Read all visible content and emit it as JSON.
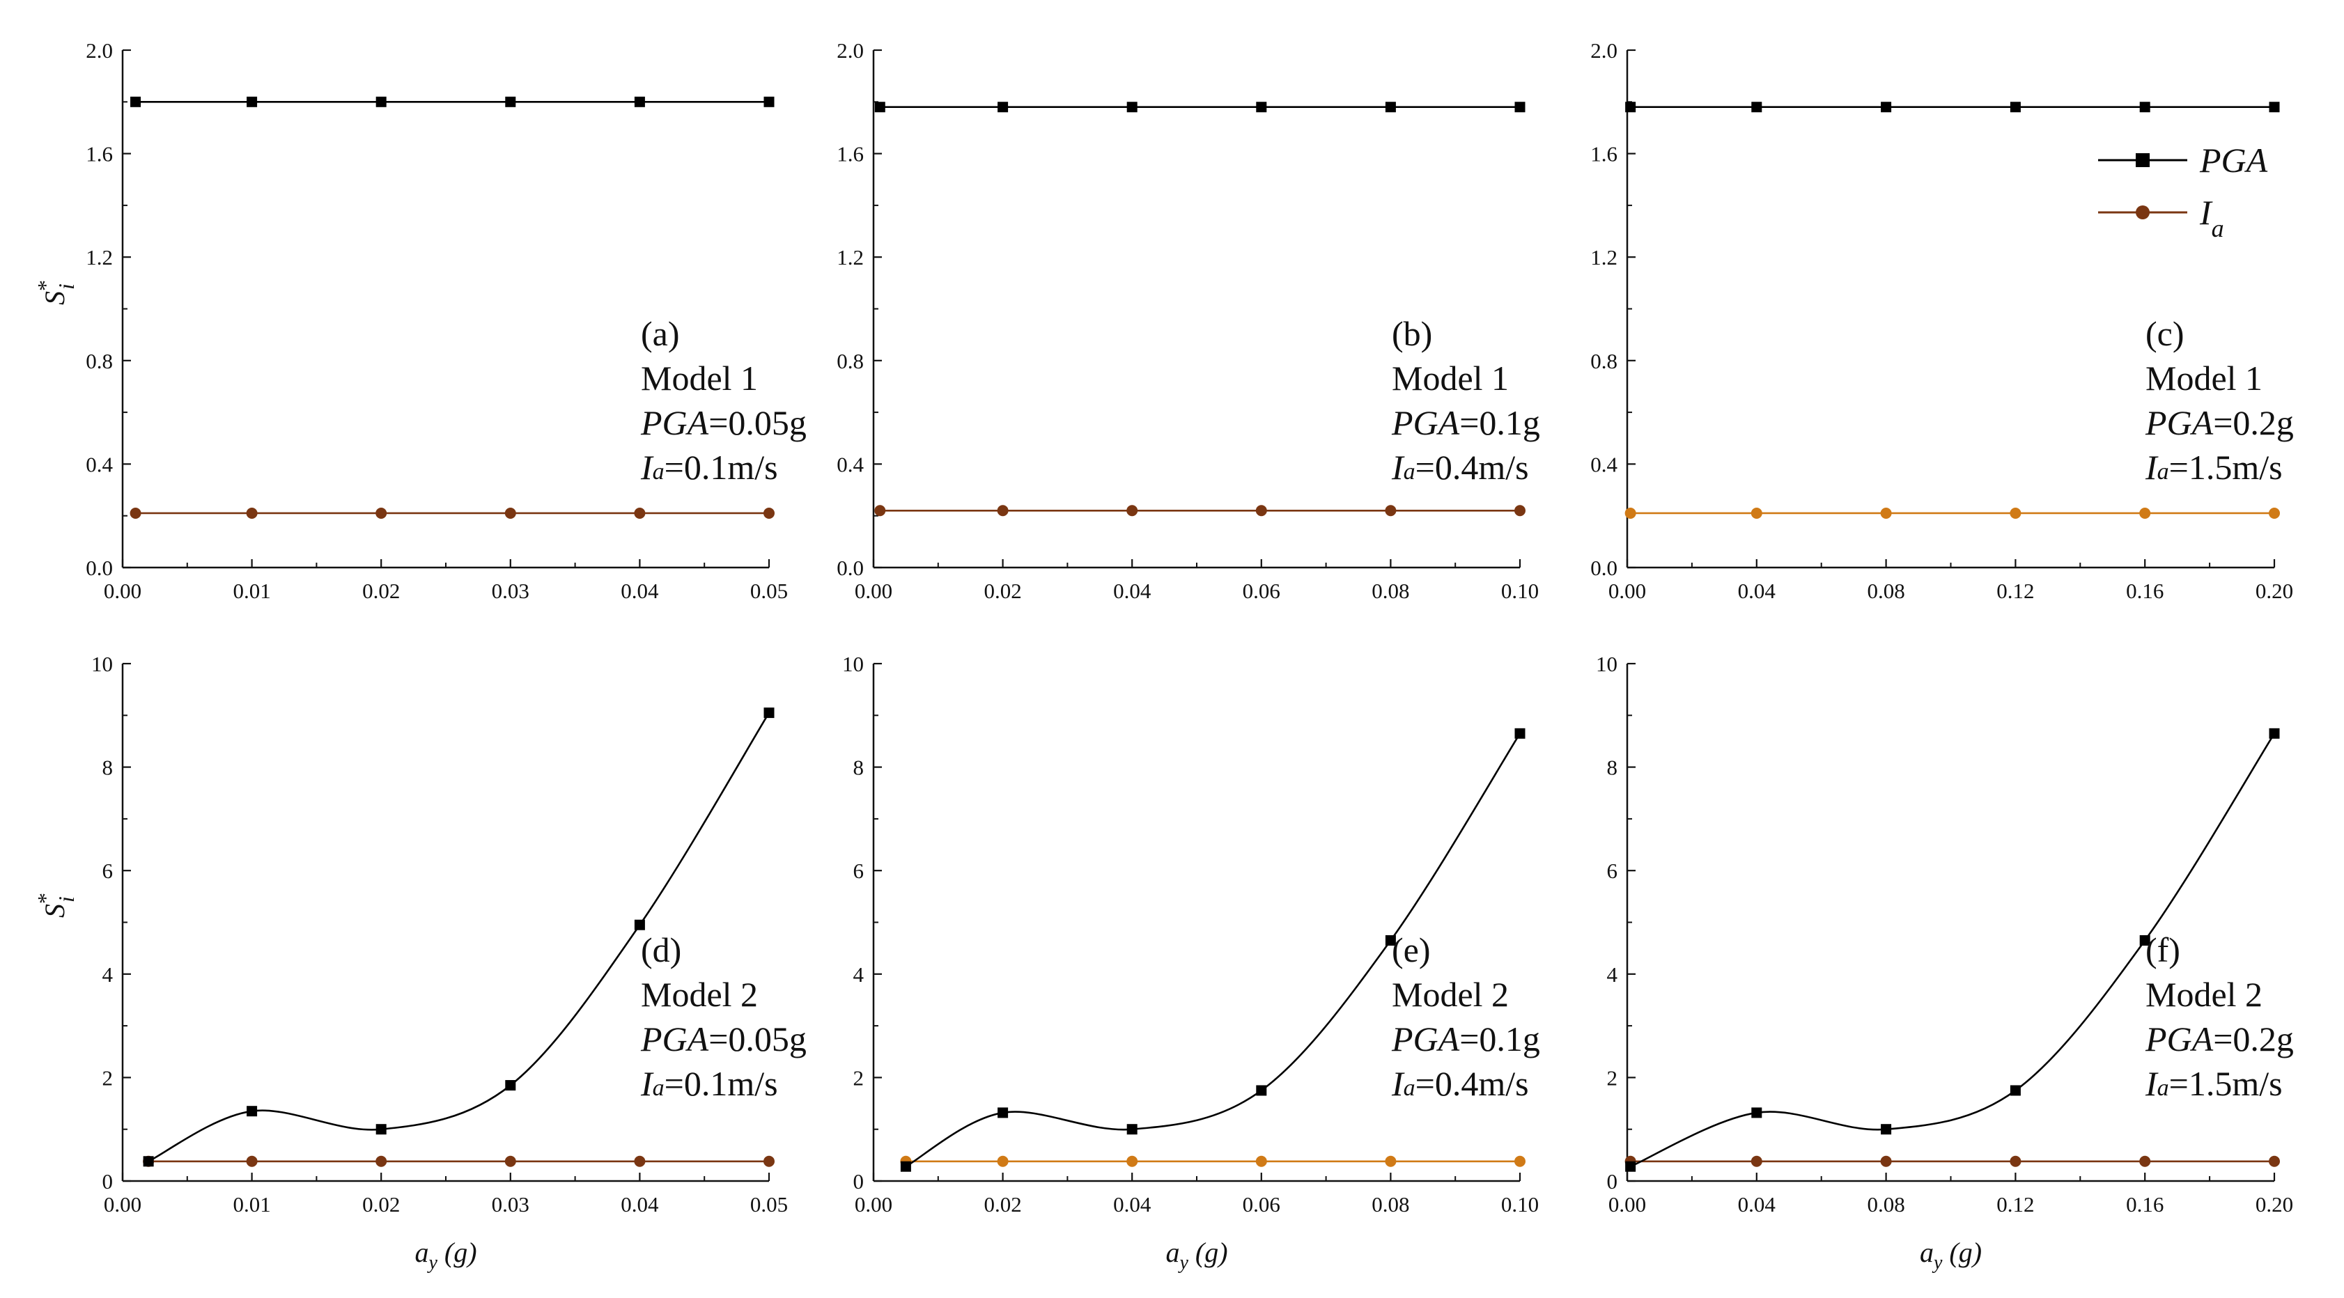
{
  "colors": {
    "pga": "#000000",
    "ia_dark": "#7a3612",
    "ia_orange": "#d07a16",
    "axis": "#111111"
  },
  "legend": {
    "placement": "top-right of panel (c)",
    "items": [
      {
        "label": "PGA",
        "marker": "square",
        "color": "#000000"
      },
      {
        "main": "I",
        "sub": "a",
        "marker": "circle",
        "color": "#7a3612"
      }
    ]
  },
  "ylabel": {
    "main": "S",
    "sup": "*",
    "sub": "i"
  },
  "xlabel": {
    "main": "a",
    "sub": "y",
    "unit": " (g)"
  },
  "chart_data": [
    {
      "type": "line",
      "panel": "a",
      "x": [
        0.001,
        0.01,
        0.02,
        0.03,
        0.04,
        0.05
      ],
      "xlim": [
        0,
        0.05
      ],
      "xticks": [
        0,
        0.01,
        0.02,
        0.03,
        0.04,
        0.05
      ],
      "xdec": 2,
      "ylim": [
        0,
        2.0
      ],
      "yticks": [
        0,
        0.4,
        0.8,
        1.2,
        1.6,
        2.0
      ],
      "ydec": 1,
      "series": [
        {
          "name": "PGA",
          "values": [
            1.8,
            1.8,
            1.8,
            1.8,
            1.8,
            1.8
          ]
        },
        {
          "name": "Ia",
          "values": [
            0.21,
            0.21,
            0.21,
            0.21,
            0.21,
            0.21
          ]
        }
      ],
      "ia_color": "#7a3612",
      "annotation": {
        "tag": "(a)",
        "model": "Model 1",
        "pga_label": "PGA",
        "pga_value": "=0.05g",
        "ia_label": "I",
        "ia_sub": "a",
        "ia_value": "=0.1m/s"
      }
    },
    {
      "type": "line",
      "panel": "b",
      "x": [
        0.001,
        0.02,
        0.04,
        0.06,
        0.08,
        0.1
      ],
      "xlim": [
        0,
        0.1
      ],
      "xticks": [
        0,
        0.02,
        0.04,
        0.06,
        0.08,
        0.1
      ],
      "xdec": 2,
      "ylim": [
        0,
        2.0
      ],
      "yticks": [
        0,
        0.4,
        0.8,
        1.2,
        1.6,
        2.0
      ],
      "ydec": 1,
      "series": [
        {
          "name": "PGA",
          "values": [
            1.78,
            1.78,
            1.78,
            1.78,
            1.78,
            1.78
          ]
        },
        {
          "name": "Ia",
          "values": [
            0.22,
            0.22,
            0.22,
            0.22,
            0.22,
            0.22
          ]
        }
      ],
      "ia_color": "#7a3612",
      "annotation": {
        "tag": "(b)",
        "model": "Model 1",
        "pga_label": "PGA",
        "pga_value": "=0.1g",
        "ia_label": "I",
        "ia_sub": "a",
        "ia_value": "=0.4m/s"
      }
    },
    {
      "type": "line",
      "panel": "c",
      "x": [
        0.001,
        0.04,
        0.08,
        0.12,
        0.16,
        0.2
      ],
      "xlim": [
        0,
        0.2
      ],
      "xticks": [
        0,
        0.04,
        0.08,
        0.12,
        0.16,
        0.2
      ],
      "xdec": 2,
      "ylim": [
        0,
        2.0
      ],
      "yticks": [
        0,
        0.4,
        0.8,
        1.2,
        1.6,
        2.0
      ],
      "ydec": 1,
      "series": [
        {
          "name": "PGA",
          "values": [
            1.78,
            1.78,
            1.78,
            1.78,
            1.78,
            1.78
          ]
        },
        {
          "name": "Ia",
          "values": [
            0.21,
            0.21,
            0.21,
            0.21,
            0.21,
            0.21
          ]
        }
      ],
      "ia_color": "#d07a16",
      "annotation": {
        "tag": "(c)",
        "model": "Model 1",
        "pga_label": "PGA",
        "pga_value": "=0.2g",
        "ia_label": "I",
        "ia_sub": "a",
        "ia_value": "=1.5m/s"
      }
    },
    {
      "type": "line",
      "panel": "d",
      "x": [
        0.002,
        0.01,
        0.02,
        0.03,
        0.04,
        0.05
      ],
      "xlim": [
        0,
        0.05
      ],
      "xticks": [
        0,
        0.01,
        0.02,
        0.03,
        0.04,
        0.05
      ],
      "xdec": 2,
      "ylim": [
        0,
        10
      ],
      "yticks": [
        0,
        2,
        4,
        6,
        8,
        10
      ],
      "ydec": 0,
      "series": [
        {
          "name": "PGA",
          "values": [
            0.38,
            1.35,
            1.0,
            1.85,
            4.95,
            9.05
          ]
        },
        {
          "name": "Ia",
          "values": [
            0.38,
            0.38,
            0.38,
            0.38,
            0.38,
            0.38
          ]
        }
      ],
      "ia_color": "#7a3612",
      "annotation": {
        "tag": "(d)",
        "model": "Model 2",
        "pga_label": "PGA",
        "pga_value": "=0.05g",
        "ia_label": "I",
        "ia_sub": "a",
        "ia_value": "=0.1m/s"
      }
    },
    {
      "type": "line",
      "panel": "e",
      "x": [
        0.005,
        0.02,
        0.04,
        0.06,
        0.08,
        0.1
      ],
      "xlim": [
        0,
        0.1
      ],
      "xticks": [
        0,
        0.02,
        0.04,
        0.06,
        0.08,
        0.1
      ],
      "xdec": 2,
      "ylim": [
        0,
        10
      ],
      "yticks": [
        0,
        2,
        4,
        6,
        8,
        10
      ],
      "ydec": 0,
      "series": [
        {
          "name": "PGA",
          "values": [
            0.28,
            1.32,
            1.0,
            1.75,
            4.65,
            8.65
          ]
        },
        {
          "name": "Ia",
          "values": [
            0.38,
            0.38,
            0.38,
            0.38,
            0.38,
            0.38
          ]
        }
      ],
      "ia_color": "#d07a16",
      "annotation": {
        "tag": "(e)",
        "model": "Model 2",
        "pga_label": "PGA",
        "pga_value": "=0.1g",
        "ia_label": "I",
        "ia_sub": "a",
        "ia_value": "=0.4m/s"
      }
    },
    {
      "type": "line",
      "panel": "f",
      "x": [
        0.001,
        0.04,
        0.08,
        0.12,
        0.16,
        0.2
      ],
      "xlim": [
        0,
        0.2
      ],
      "xticks": [
        0,
        0.04,
        0.08,
        0.12,
        0.16,
        0.2
      ],
      "xdec": 2,
      "ylim": [
        0,
        10
      ],
      "yticks": [
        0,
        2,
        4,
        6,
        8,
        10
      ],
      "ydec": 0,
      "series": [
        {
          "name": "PGA",
          "values": [
            0.28,
            1.32,
            1.0,
            1.75,
            4.65,
            8.65
          ]
        },
        {
          "name": "Ia",
          "values": [
            0.38,
            0.38,
            0.38,
            0.38,
            0.38,
            0.38
          ]
        }
      ],
      "ia_color": "#7a3612",
      "annotation": {
        "tag": "(f)",
        "model": "Model 2",
        "pga_label": "PGA",
        "pga_value": "=0.2g",
        "ia_label": "I",
        "ia_sub": "a",
        "ia_value": "=1.5m/s"
      }
    }
  ]
}
